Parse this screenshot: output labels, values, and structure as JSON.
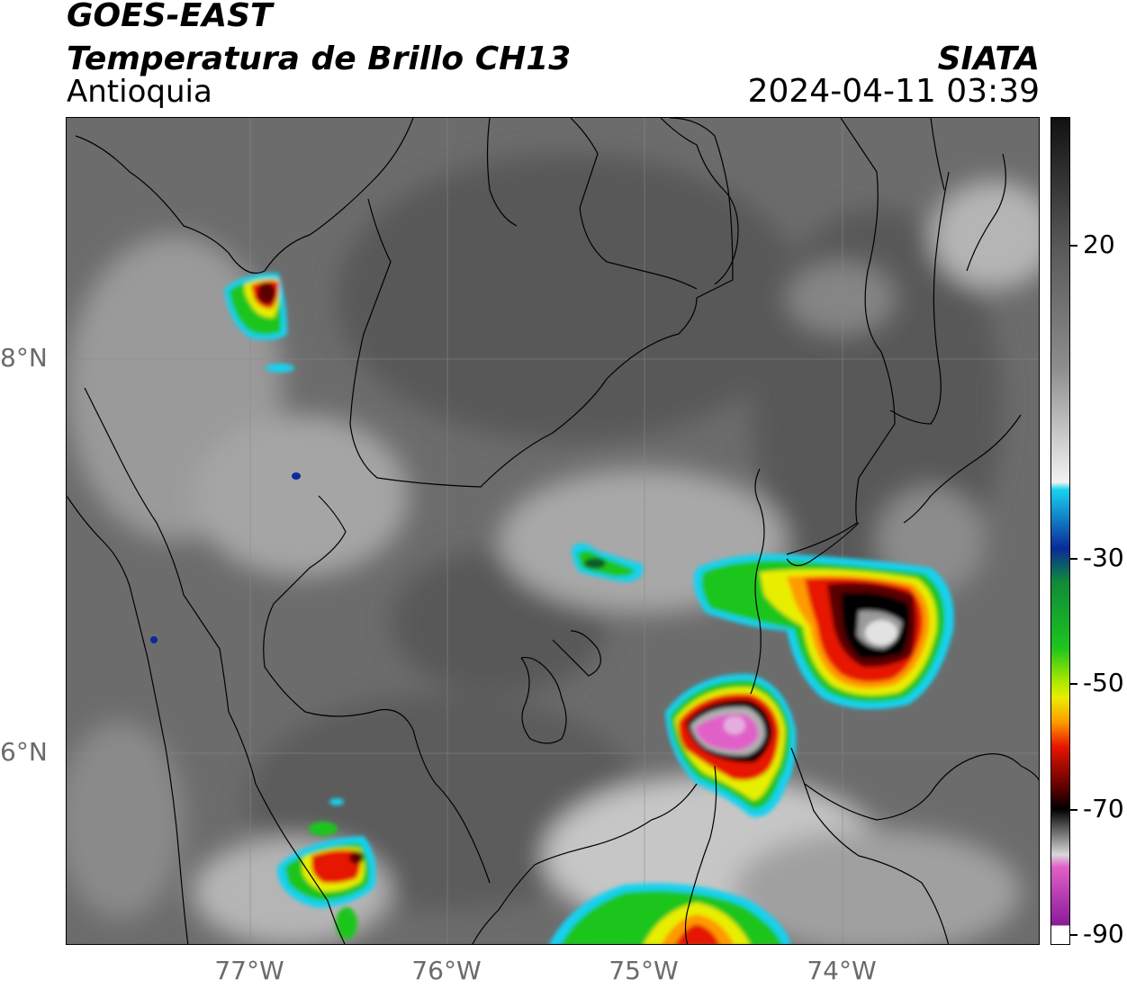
{
  "header": {
    "satellite": "GOES-EAST",
    "product": "Temperatura de Brillo CH13",
    "region": "Antioquia",
    "agency": "SIATA",
    "datetime": "2024-04-11 03:39"
  },
  "axes": {
    "lat_labels": [
      "8°N",
      "6°N"
    ],
    "lon_labels": [
      "77°W",
      "76°W",
      "75°W",
      "74°W"
    ]
  },
  "colorbar": {
    "tick_labels": [
      "20",
      "-30",
      "-50",
      "-70",
      "-90"
    ],
    "range": [
      -90,
      35
    ],
    "colors": {
      "warm_gray_top": "#111111",
      "cold_white": "#f2f2f2",
      "cyan": "#19d2f0",
      "blue": "#0a2a9a",
      "green": "#1ec51e",
      "yellow": "#e8ee00",
      "orange": "#ff9a00",
      "red": "#e61400",
      "dark_red": "#5a0000",
      "black": "#000000",
      "pink": "#e060c8",
      "purple": "#8a1a9a"
    }
  }
}
